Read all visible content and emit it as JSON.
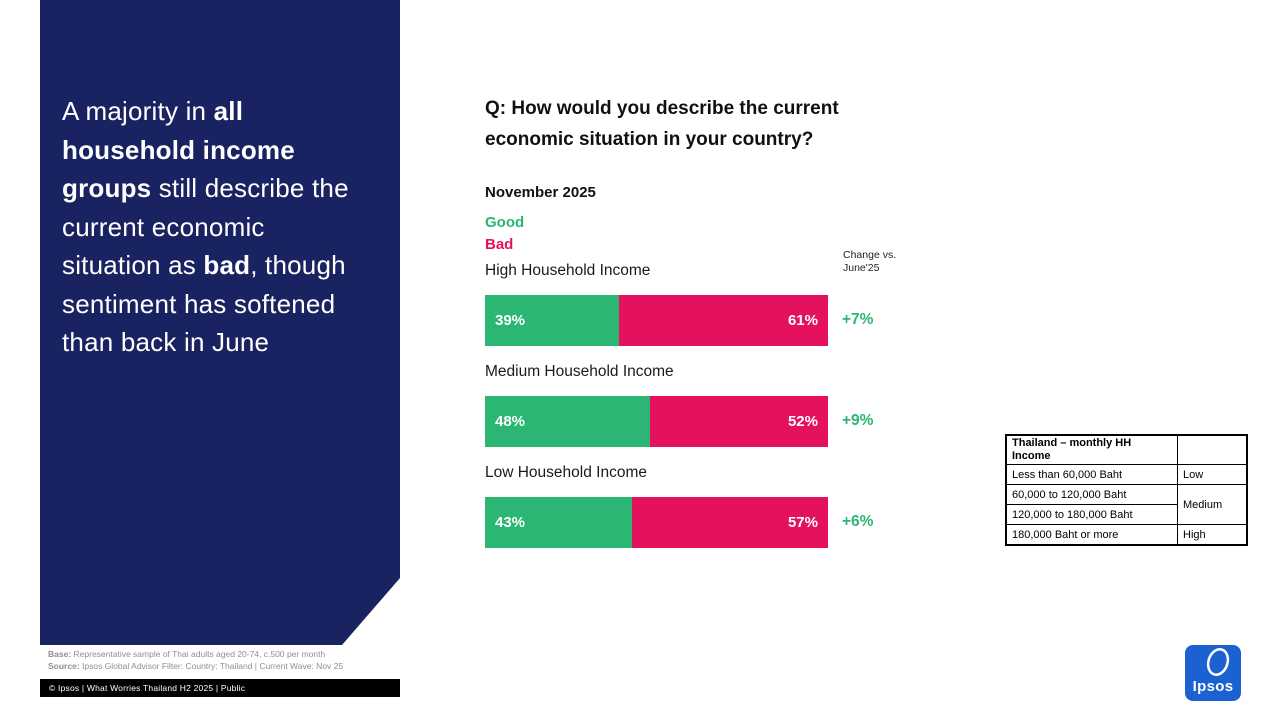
{
  "colors": {
    "panel_navy": "#1a2361",
    "good_green": "#2bb673",
    "bad_pink": "#e4125e",
    "logo_blue": "#1b61d1"
  },
  "left_panel": {
    "headline": {
      "s1": "A majority in ",
      "s2": "all household income groups",
      "s3": " still describe the current economic situation as ",
      "s4": "bad",
      "s5": ", though sentiment has softened than back in June"
    }
  },
  "chart_data": {
    "type": "bar",
    "stacked": true,
    "orientation": "horizontal",
    "title": "Q: How would you describe the current economic situation in your country?",
    "subtitle": "November 2025",
    "categories": [
      "High Household Income",
      "Medium Household Income",
      "Low Household Income"
    ],
    "series": [
      {
        "name": "Good",
        "color": "#2bb673",
        "values": [
          39,
          48,
          43
        ]
      },
      {
        "name": "Bad",
        "color": "#e4125e",
        "values": [
          61,
          52,
          57
        ]
      }
    ],
    "value_labels": {
      "good": [
        "39%",
        "48%",
        "43%"
      ],
      "bad": [
        "61%",
        "52%",
        "57%"
      ]
    },
    "change_column": {
      "header_line1": "Change vs.",
      "header_line2": "June'25",
      "values": [
        "+7%",
        "+9%",
        "+6%"
      ]
    },
    "xlim": [
      0,
      100
    ],
    "legend_position": "top-left"
  },
  "income_table": {
    "header": "Thailand – monthly HH Income",
    "rows": [
      {
        "range": "Less than 60,000 Baht",
        "level": "Low"
      },
      {
        "range": "60,000 to 120,000 Baht",
        "level": "Medium"
      },
      {
        "range": "120,000 to 180,000 Baht",
        "level": "Medium"
      },
      {
        "range": "180,000 Baht or more",
        "level": "High"
      }
    ]
  },
  "footer": {
    "base_label": "Base:",
    "base_text": " Representative sample of Thai adults aged 20-74, c.500 per month",
    "source_label": "Source:",
    "source_text": " Ipsos Global Advisor Filter: Country: Thailand | Current Wave: Nov 25",
    "copyright": "© Ipsos | What Worries Thailand H2 2025 | Public"
  },
  "logo": {
    "text": "Ipsos"
  }
}
